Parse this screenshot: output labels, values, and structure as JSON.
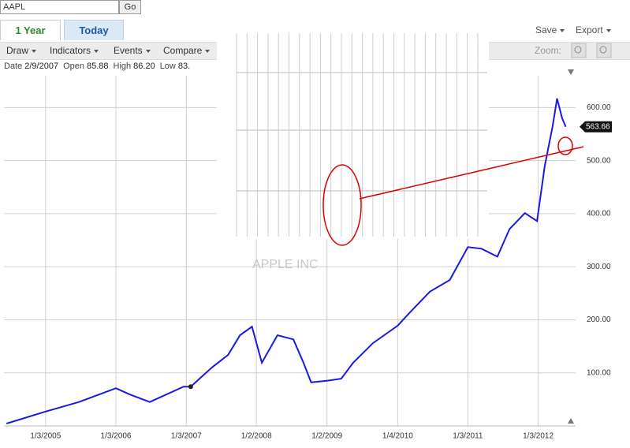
{
  "ui": {
    "symbol": "AAPL",
    "go": "Go",
    "tabs": [
      "1 Year",
      "Today"
    ],
    "actions": [
      "Save",
      "Export"
    ],
    "toolbar": [
      "Draw",
      "Indicators",
      "Events",
      "Compare"
    ],
    "zoom": "Zoom:",
    "info": [
      {
        "label": "Date",
        "value": "2/9/2007"
      },
      {
        "label": "Open",
        "value": "85.88"
      },
      {
        "label": "High",
        "value": "86.20"
      },
      {
        "label": "Low",
        "value": "83."
      }
    ]
  },
  "chart_data": {
    "type": "line",
    "watermark": "APPLE INC",
    "series": [
      {
        "name": "AAPL",
        "color": "#1a1ae0",
        "x": [
          "6/14/2004",
          "1/3/2005",
          "6/25/2005",
          "1/3/2006",
          "3/18/2006",
          "6/28/2006",
          "12/20/2006",
          "1/26/2007",
          "5/19/2007",
          "8/8/2007",
          "10/9/2007",
          "12/10/2007",
          "1/30/2008",
          "4/20/2008",
          "7/12/2008",
          "9/2/2008",
          "10/12/2008",
          "1/2/2009",
          "3/17/2009",
          "5/18/2009",
          "8/28/2009",
          "1/4/2010",
          "3/11/2010",
          "6/20/2010",
          "10/1/2010",
          "1/3/2011",
          "3/15/2011",
          "6/5/2011",
          "8/7/2011",
          "10/26/2011",
          "12/28/2011",
          "2/6/2012",
          "3/18/2012",
          "4/10/2012",
          "5/6/2012",
          "5/25/2012"
        ],
        "values": [
          4.5,
          27,
          45,
          71,
          59,
          45,
          74,
          74,
          111,
          134,
          171,
          187,
          119,
          171,
          163,
          119,
          82,
          85,
          89,
          119,
          156,
          189,
          215,
          253,
          275,
          337,
          334,
          319,
          371,
          401,
          386,
          490,
          565,
          617,
          580,
          563.66
        ]
      }
    ],
    "xlim": [
      "6/1/2004",
      "7/15/2012"
    ],
    "xticks": [
      "1/3/2005",
      "1/3/2006",
      "1/3/2007",
      "1/2/2008",
      "1/2/2009",
      "1/4/2010",
      "1/3/2011",
      "1/3/2012"
    ],
    "ylim": [
      0,
      660
    ],
    "yticks": [
      {
        "value": 100,
        "label": "100.00"
      },
      {
        "value": 200,
        "label": "200.00"
      },
      {
        "value": 300,
        "label": "300.00"
      },
      {
        "value": 400,
        "label": "400.00"
      },
      {
        "value": 500,
        "label": "500.00"
      },
      {
        "value": 600,
        "label": "600.00"
      }
    ],
    "grid": true
  }
}
